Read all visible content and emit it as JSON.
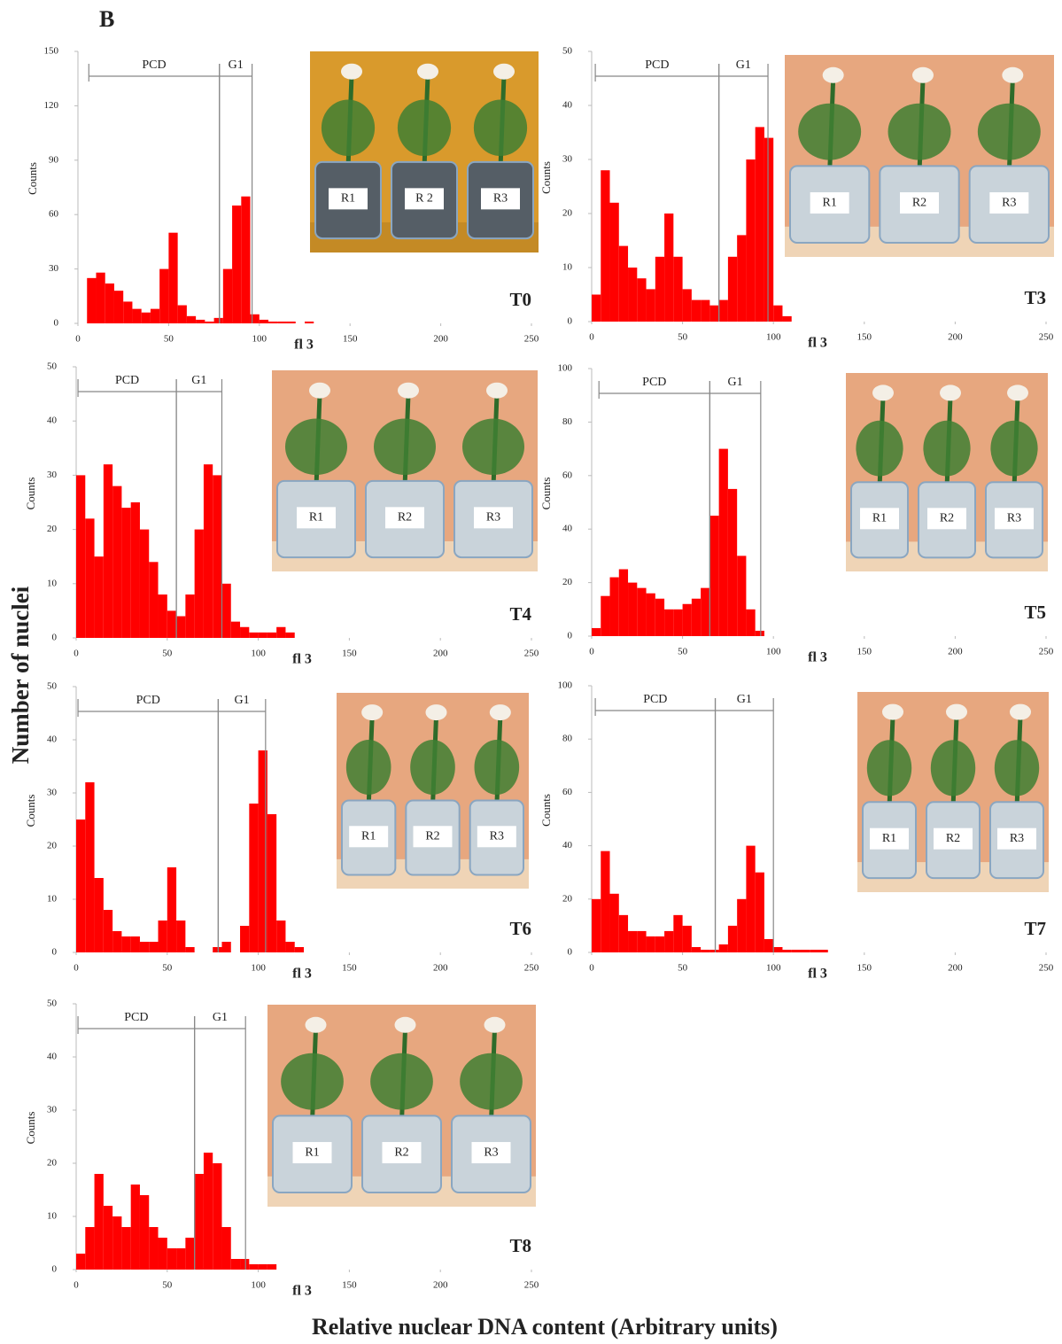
{
  "figure": {
    "label": "B",
    "ylabel": "Number of nuclei",
    "xlabel": "Relative nuclear DNA content (Arbitrary units)"
  },
  "chart_data": [
    {
      "type": "histogram",
      "panel": "T0",
      "ylabel": "Counts",
      "xlabel": "fl 3",
      "color": "#ff0000",
      "xlim": [
        0,
        250
      ],
      "xticks": [
        0,
        50,
        100,
        150,
        200,
        250
      ],
      "ylim": [
        0,
        150
      ],
      "yticks": [
        0,
        30,
        60,
        90,
        120,
        150
      ],
      "bins": [
        0,
        5,
        10,
        15,
        20,
        25,
        30,
        35,
        40,
        45,
        50,
        55,
        60,
        65,
        70,
        75,
        80,
        85,
        90,
        95,
        100,
        105,
        110,
        115,
        120,
        125,
        130,
        135,
        140,
        145,
        150
      ],
      "values": [
        0,
        25,
        28,
        22,
        18,
        12,
        8,
        6,
        8,
        30,
        50,
        10,
        4,
        2,
        1,
        3,
        30,
        65,
        70,
        5,
        2,
        1,
        1,
        1,
        0,
        1,
        0,
        0,
        0,
        0
      ],
      "gates": [
        {
          "label": "PCD",
          "range": [
            6,
            78
          ]
        },
        {
          "label": "G1",
          "range": [
            78,
            96
          ]
        }
      ],
      "inset_labels": [
        "R1",
        "R 2",
        "R3"
      ]
    },
    {
      "type": "histogram",
      "panel": "T3",
      "ylabel": "Counts",
      "xlabel": "fl 3",
      "color": "#ff0000",
      "xlim": [
        0,
        250
      ],
      "xticks": [
        0,
        50,
        100,
        150,
        200,
        250
      ],
      "ylim": [
        0,
        50
      ],
      "yticks": [
        0,
        10,
        20,
        30,
        40,
        50
      ],
      "bins": [
        0,
        5,
        10,
        15,
        20,
        25,
        30,
        35,
        40,
        45,
        50,
        55,
        60,
        65,
        70,
        75,
        80,
        85,
        90,
        95,
        100,
        105,
        110,
        115,
        120,
        125,
        130,
        135,
        140,
        145,
        150
      ],
      "values": [
        5,
        28,
        22,
        14,
        10,
        8,
        6,
        12,
        20,
        12,
        6,
        4,
        4,
        3,
        4,
        12,
        16,
        30,
        36,
        34,
        3,
        1,
        0,
        0,
        0,
        0,
        0,
        0,
        0,
        0
      ],
      "gates": [
        {
          "label": "PCD",
          "range": [
            2,
            70
          ]
        },
        {
          "label": "G1",
          "range": [
            70,
            97
          ]
        }
      ],
      "inset_labels": [
        "R1",
        "R2",
        "R3"
      ]
    },
    {
      "type": "histogram",
      "panel": "T4",
      "ylabel": "Counts",
      "xlabel": "fl 3",
      "color": "#ff0000",
      "xlim": [
        0,
        250
      ],
      "xticks": [
        0,
        50,
        100,
        150,
        200,
        250
      ],
      "ylim": [
        0,
        50
      ],
      "yticks": [
        0,
        10,
        20,
        30,
        40,
        50
      ],
      "bins": [
        0,
        5,
        10,
        15,
        20,
        25,
        30,
        35,
        40,
        45,
        50,
        55,
        60,
        65,
        70,
        75,
        80,
        85,
        90,
        95,
        100,
        105,
        110,
        115,
        120,
        125,
        130,
        135,
        140,
        145,
        150
      ],
      "values": [
        30,
        22,
        15,
        32,
        28,
        24,
        25,
        20,
        14,
        8,
        5,
        4,
        8,
        20,
        32,
        30,
        10,
        3,
        2,
        1,
        1,
        1,
        2,
        1,
        0,
        0,
        0,
        0,
        0,
        0
      ],
      "gates": [
        {
          "label": "PCD",
          "range": [
            1,
            55
          ]
        },
        {
          "label": "G1",
          "range": [
            55,
            80
          ]
        }
      ],
      "inset_labels": [
        "R1",
        "R2",
        "R3"
      ]
    },
    {
      "type": "histogram",
      "panel": "T5",
      "ylabel": "Counts",
      "xlabel": "fl 3",
      "color": "#ff0000",
      "xlim": [
        0,
        250
      ],
      "xticks": [
        0,
        50,
        100,
        150,
        200,
        250
      ],
      "ylim": [
        0,
        100
      ],
      "yticks": [
        0,
        20,
        40,
        60,
        80,
        100
      ],
      "bins": [
        0,
        5,
        10,
        15,
        20,
        25,
        30,
        35,
        40,
        45,
        50,
        55,
        60,
        65,
        70,
        75,
        80,
        85,
        90,
        95,
        100,
        105,
        110,
        115,
        120,
        125,
        130,
        135,
        140,
        145,
        150
      ],
      "values": [
        3,
        15,
        22,
        25,
        20,
        18,
        16,
        14,
        10,
        10,
        12,
        14,
        18,
        45,
        70,
        55,
        30,
        10,
        2,
        0,
        0,
        0,
        0,
        0,
        0,
        0,
        0,
        0,
        0,
        0
      ],
      "gates": [
        {
          "label": "PCD",
          "range": [
            4,
            65
          ]
        },
        {
          "label": "G1",
          "range": [
            65,
            93
          ]
        }
      ],
      "inset_labels": [
        "R1",
        "R2",
        "R3"
      ]
    },
    {
      "type": "histogram",
      "panel": "T6",
      "ylabel": "Counts",
      "xlabel": "fl 3",
      "color": "#ff0000",
      "xlim": [
        0,
        250
      ],
      "xticks": [
        0,
        50,
        100,
        150,
        200,
        250
      ],
      "ylim": [
        0,
        50
      ],
      "yticks": [
        0,
        10,
        20,
        30,
        40,
        50
      ],
      "bins": [
        0,
        5,
        10,
        15,
        20,
        25,
        30,
        35,
        40,
        45,
        50,
        55,
        60,
        65,
        70,
        75,
        80,
        85,
        90,
        95,
        100,
        105,
        110,
        115,
        120,
        125,
        130,
        135,
        140,
        145,
        150
      ],
      "values": [
        25,
        32,
        14,
        8,
        4,
        3,
        3,
        2,
        2,
        6,
        16,
        6,
        1,
        0,
        0,
        1,
        2,
        0,
        5,
        28,
        38,
        26,
        6,
        2,
        1,
        0,
        0,
        0,
        0,
        0
      ],
      "gates": [
        {
          "label": "PCD",
          "range": [
            1,
            78
          ]
        },
        {
          "label": "G1",
          "range": [
            78,
            104
          ]
        }
      ],
      "inset_labels": [
        "R1",
        "R2",
        "R3"
      ]
    },
    {
      "type": "histogram",
      "panel": "T7",
      "ylabel": "Counts",
      "xlabel": "fl 3",
      "color": "#ff0000",
      "xlim": [
        0,
        250
      ],
      "xticks": [
        0,
        50,
        100,
        150,
        200,
        250
      ],
      "ylim": [
        0,
        100
      ],
      "yticks": [
        0,
        20,
        40,
        60,
        80,
        100
      ],
      "bins": [
        0,
        5,
        10,
        15,
        20,
        25,
        30,
        35,
        40,
        45,
        50,
        55,
        60,
        65,
        70,
        75,
        80,
        85,
        90,
        95,
        100,
        105,
        110,
        115,
        120,
        125,
        130,
        135,
        140,
        145,
        150
      ],
      "values": [
        20,
        38,
        22,
        14,
        8,
        8,
        6,
        6,
        8,
        14,
        10,
        2,
        1,
        1,
        3,
        10,
        20,
        40,
        30,
        5,
        2,
        1,
        1,
        1,
        1,
        1,
        0,
        0,
        0,
        0
      ],
      "gates": [
        {
          "label": "PCD",
          "range": [
            2,
            68
          ]
        },
        {
          "label": "G1",
          "range": [
            68,
            100
          ]
        }
      ],
      "inset_labels": [
        "R1",
        "R2",
        "R3"
      ]
    },
    {
      "type": "histogram",
      "panel": "T8",
      "ylabel": "Counts",
      "xlabel": "fl 3",
      "color": "#ff0000",
      "xlim": [
        0,
        250
      ],
      "xticks": [
        0,
        50,
        100,
        150,
        200,
        250
      ],
      "ylim": [
        0,
        50
      ],
      "yticks": [
        0,
        10,
        20,
        30,
        40,
        50
      ],
      "bins": [
        0,
        5,
        10,
        15,
        20,
        25,
        30,
        35,
        40,
        45,
        50,
        55,
        60,
        65,
        70,
        75,
        80,
        85,
        90,
        95,
        100,
        105,
        110,
        115,
        120,
        125,
        130,
        135,
        140,
        145,
        150
      ],
      "values": [
        3,
        8,
        18,
        12,
        10,
        8,
        16,
        14,
        8,
        6,
        4,
        4,
        6,
        18,
        22,
        20,
        8,
        2,
        2,
        1,
        1,
        1,
        0,
        0,
        0,
        0,
        0,
        0,
        0,
        0
      ],
      "gates": [
        {
          "label": "PCD",
          "range": [
            1,
            65
          ]
        },
        {
          "label": "G1",
          "range": [
            65,
            93
          ]
        }
      ],
      "inset_labels": [
        "R1",
        "R2",
        "R3"
      ]
    }
  ]
}
